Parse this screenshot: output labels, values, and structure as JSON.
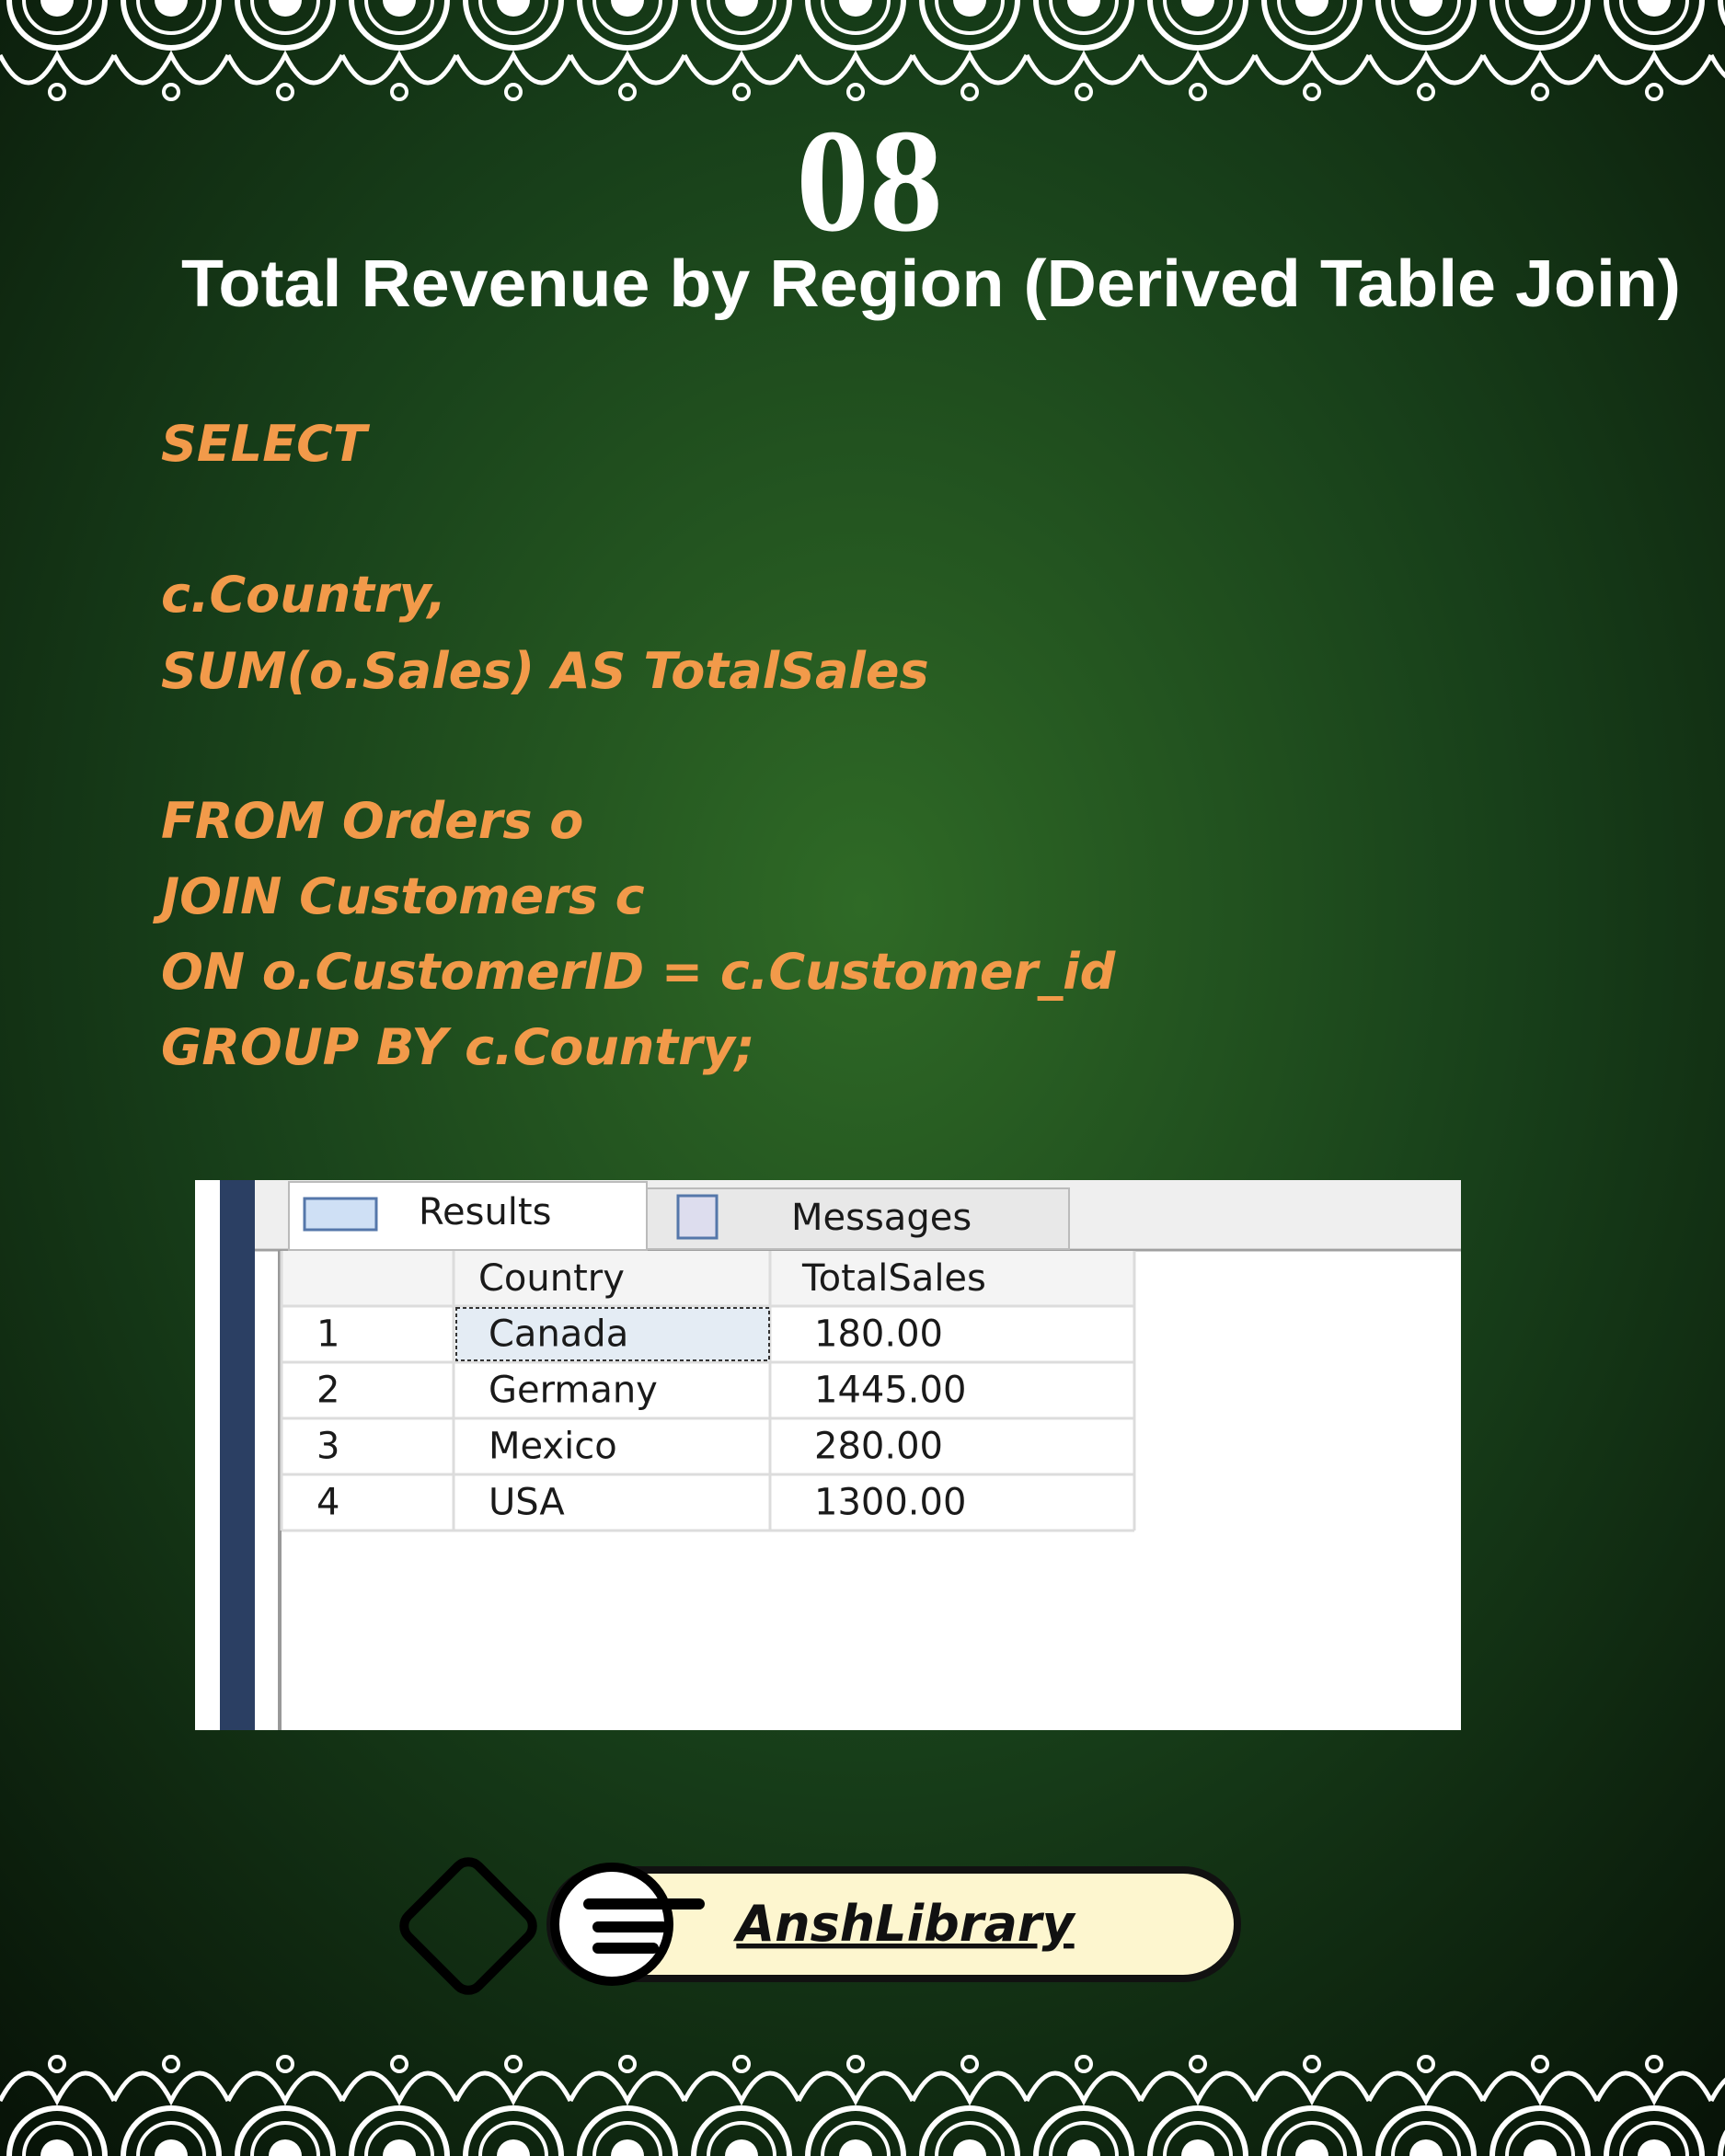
{
  "header": {
    "number": "08",
    "title": "Total Revenue by Region (Derived Table Join)"
  },
  "code": {
    "lines": [
      "SELECT",
      "c.Country,",
      "SUM(o.Sales) AS TotalSales",
      "FROM Orders o",
      "JOIN Customers c",
      "ON o.CustomerID = c.Customer_id",
      "GROUP BY c.Country;"
    ]
  },
  "results": {
    "tabs": [
      "Results",
      "Messages"
    ],
    "columns": [
      "Country",
      "TotalSales"
    ],
    "rows": [
      [
        "1",
        "Canada",
        "180.00"
      ],
      [
        "2",
        "Germany",
        "1445.00"
      ],
      [
        "3",
        "Mexico",
        "280.00"
      ],
      [
        "4",
        "USA",
        "1300.00"
      ]
    ]
  },
  "footer": {
    "brand": "AnshLibrary"
  }
}
